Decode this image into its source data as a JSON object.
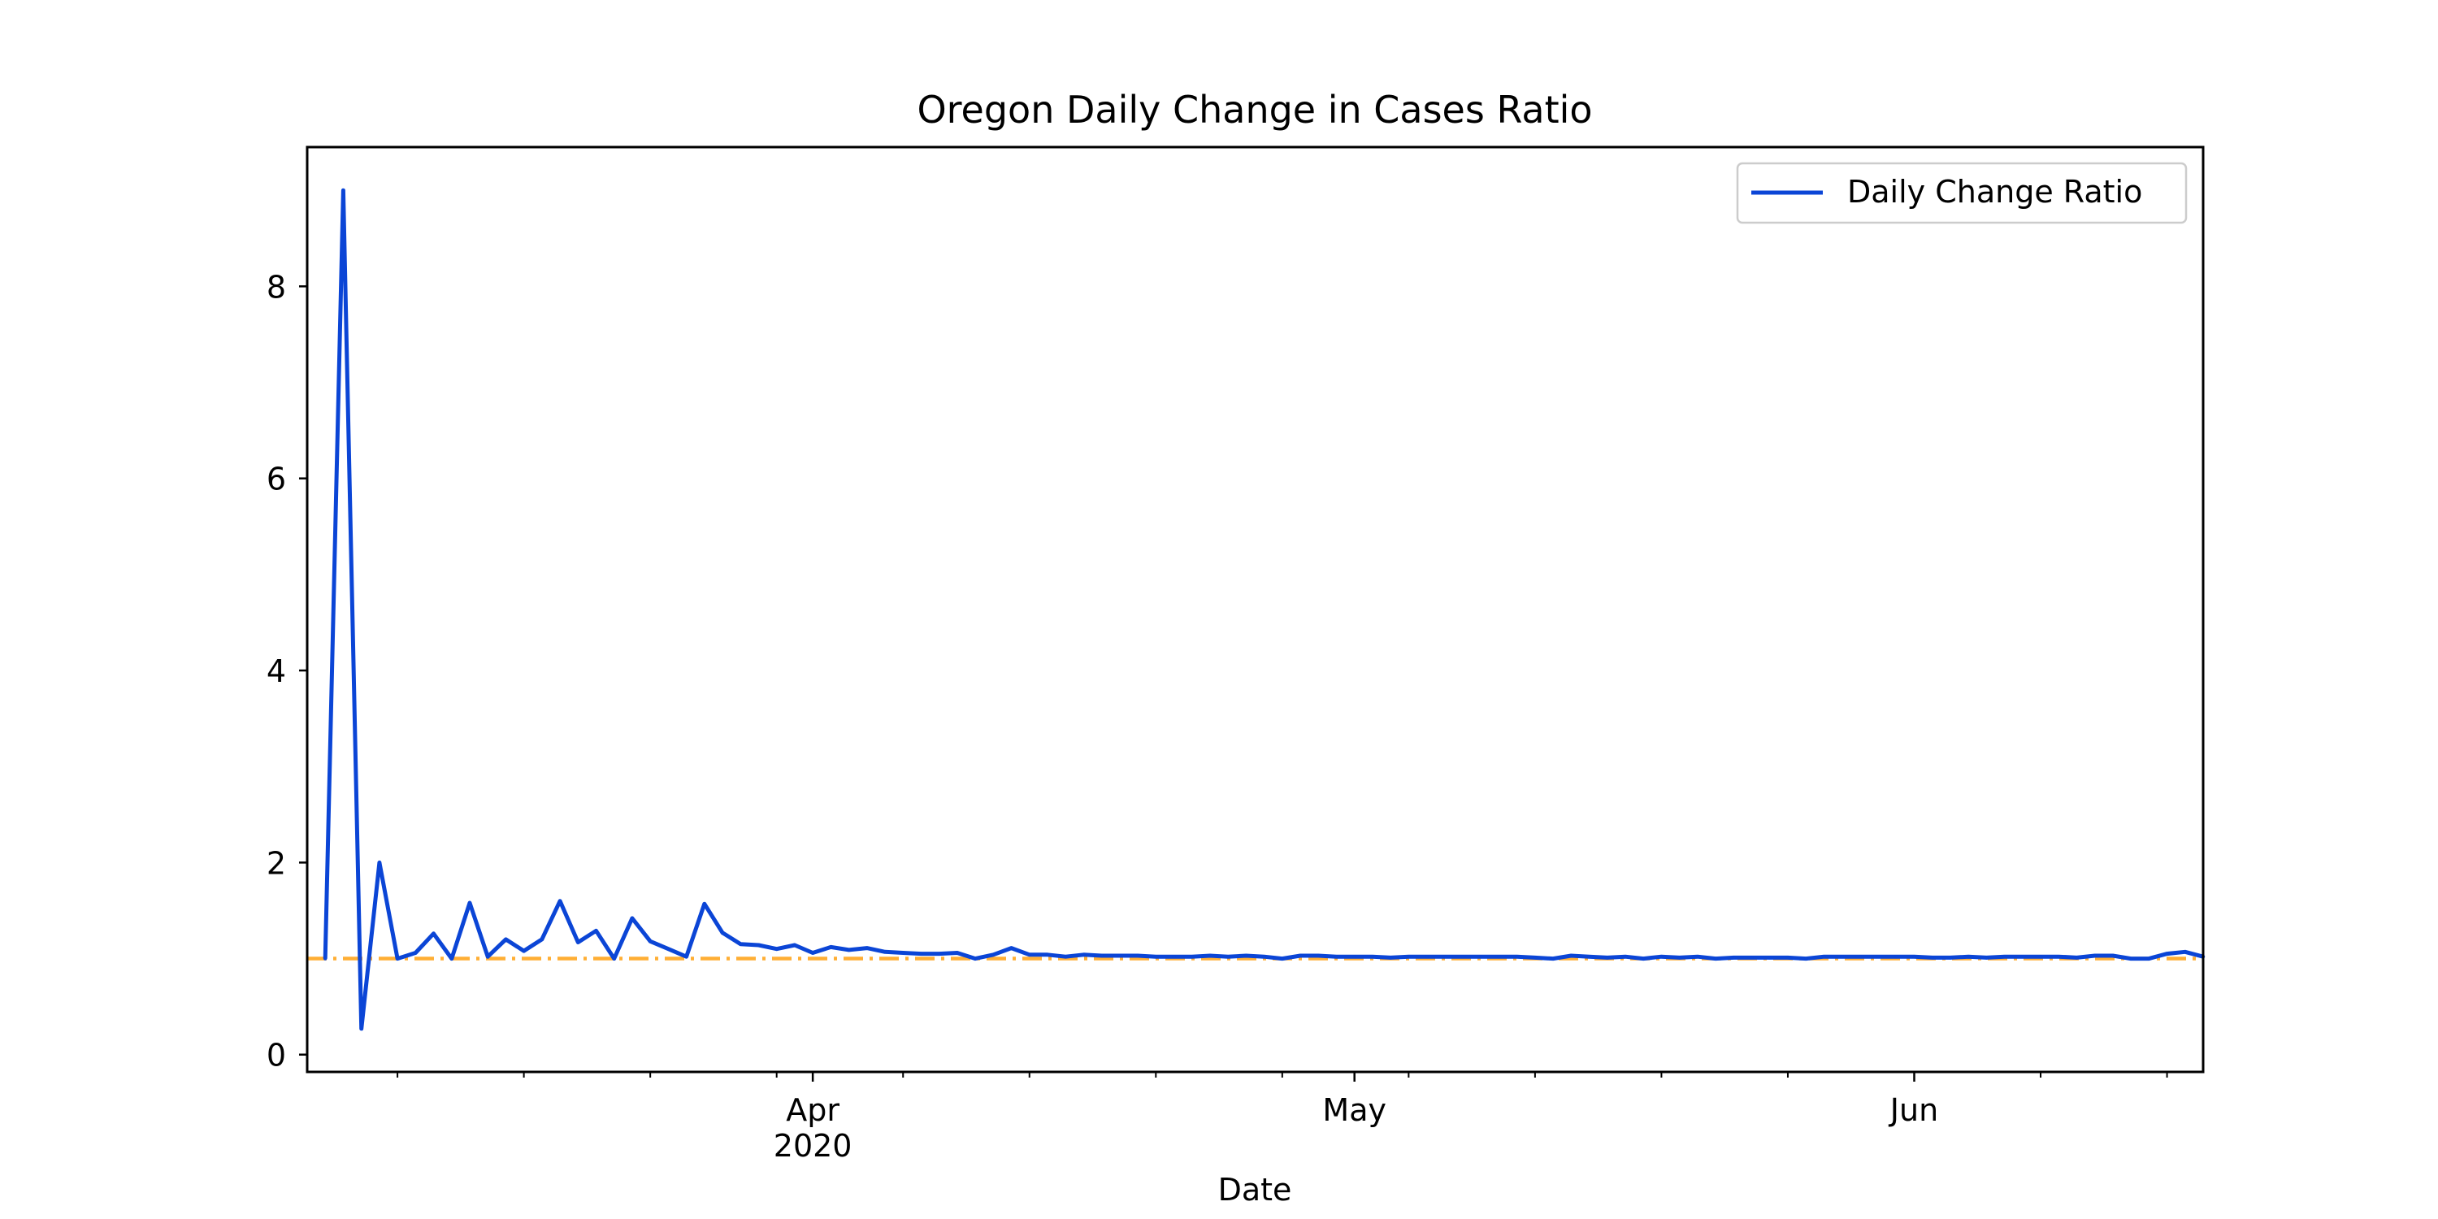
{
  "chart_data": {
    "type": "line",
    "title": "Oregon Daily Change in Cases Ratio",
    "xlabel": "Date",
    "ylabel": "",
    "x_ticks": [
      {
        "date": "2020-04-01",
        "label": "Apr",
        "sublabel": "2020"
      },
      {
        "date": "2020-05-01",
        "label": "May",
        "sublabel": ""
      },
      {
        "date": "2020-06-01",
        "label": "Jun",
        "sublabel": ""
      }
    ],
    "y_ticks": [
      "0",
      "2",
      "4",
      "6",
      "8"
    ],
    "xlim": [
      "2020-03-04",
      "2020-06-17"
    ],
    "ylim": [
      -0.18,
      9.45
    ],
    "grid": false,
    "legend": "top-right",
    "reference_line": {
      "y": 1.0,
      "color": "#ffae34",
      "style": "dashdot"
    },
    "series": [
      {
        "name": "Daily Change Ratio",
        "color": "#0b45d6",
        "x": [
          "2020-03-05",
          "2020-03-06",
          "2020-03-07",
          "2020-03-08",
          "2020-03-09",
          "2020-03-10",
          "2020-03-11",
          "2020-03-12",
          "2020-03-13",
          "2020-03-14",
          "2020-03-15",
          "2020-03-16",
          "2020-03-17",
          "2020-03-18",
          "2020-03-19",
          "2020-03-20",
          "2020-03-21",
          "2020-03-22",
          "2020-03-23",
          "2020-03-24",
          "2020-03-25",
          "2020-03-26",
          "2020-03-27",
          "2020-03-28",
          "2020-03-29",
          "2020-03-30",
          "2020-03-31",
          "2020-04-01",
          "2020-04-02",
          "2020-04-03",
          "2020-04-04",
          "2020-04-05",
          "2020-04-06",
          "2020-04-07",
          "2020-04-08",
          "2020-04-09",
          "2020-04-10",
          "2020-04-11",
          "2020-04-12",
          "2020-04-13",
          "2020-04-14",
          "2020-04-15",
          "2020-04-16",
          "2020-04-17",
          "2020-04-18",
          "2020-04-19",
          "2020-04-20",
          "2020-04-21",
          "2020-04-22",
          "2020-04-23",
          "2020-04-24",
          "2020-04-25",
          "2020-04-26",
          "2020-04-27",
          "2020-04-28",
          "2020-04-29",
          "2020-04-30",
          "2020-05-01",
          "2020-05-02",
          "2020-05-03",
          "2020-05-04",
          "2020-05-05",
          "2020-05-06",
          "2020-05-07",
          "2020-05-08",
          "2020-05-09",
          "2020-05-10",
          "2020-05-11",
          "2020-05-12",
          "2020-05-13",
          "2020-05-14",
          "2020-05-15",
          "2020-05-16",
          "2020-05-17",
          "2020-05-18",
          "2020-05-19",
          "2020-05-20",
          "2020-05-21",
          "2020-05-22",
          "2020-05-23",
          "2020-05-24",
          "2020-05-25",
          "2020-05-26",
          "2020-05-27",
          "2020-05-28",
          "2020-05-29",
          "2020-05-30",
          "2020-05-31",
          "2020-06-01",
          "2020-06-02",
          "2020-06-03",
          "2020-06-04",
          "2020-06-05",
          "2020-06-06",
          "2020-06-07",
          "2020-06-08",
          "2020-06-09",
          "2020-06-10",
          "2020-06-11",
          "2020-06-12",
          "2020-06-13",
          "2020-06-14",
          "2020-06-15",
          "2020-06-16",
          "2020-06-17"
        ],
        "values": [
          1.0,
          9.0,
          0.27,
          2.0,
          1.0,
          1.06,
          1.26,
          1.0,
          1.58,
          1.02,
          1.2,
          1.08,
          1.2,
          1.6,
          1.17,
          1.29,
          1.0,
          1.42,
          1.18,
          1.1,
          1.02,
          1.57,
          1.27,
          1.15,
          1.14,
          1.1,
          1.14,
          1.06,
          1.12,
          1.09,
          1.11,
          1.07,
          1.06,
          1.05,
          1.05,
          1.06,
          1.0,
          1.04,
          1.11,
          1.04,
          1.04,
          1.02,
          1.04,
          1.03,
          1.03,
          1.03,
          1.02,
          1.02,
          1.02,
          1.03,
          1.02,
          1.03,
          1.02,
          1.0,
          1.03,
          1.03,
          1.02,
          1.02,
          1.02,
          1.01,
          1.02,
          1.02,
          1.02,
          1.02,
          1.02,
          1.02,
          1.02,
          1.01,
          1.0,
          1.03,
          1.02,
          1.01,
          1.02,
          1.0,
          1.02,
          1.01,
          1.02,
          1.0,
          1.01,
          1.01,
          1.01,
          1.01,
          1.0,
          1.02,
          1.02,
          1.02,
          1.02,
          1.02,
          1.02,
          1.01,
          1.01,
          1.02,
          1.01,
          1.02,
          1.02,
          1.02,
          1.02,
          1.01,
          1.03,
          1.03,
          1.0,
          1.0,
          1.05,
          1.07,
          1.02
        ]
      }
    ]
  }
}
